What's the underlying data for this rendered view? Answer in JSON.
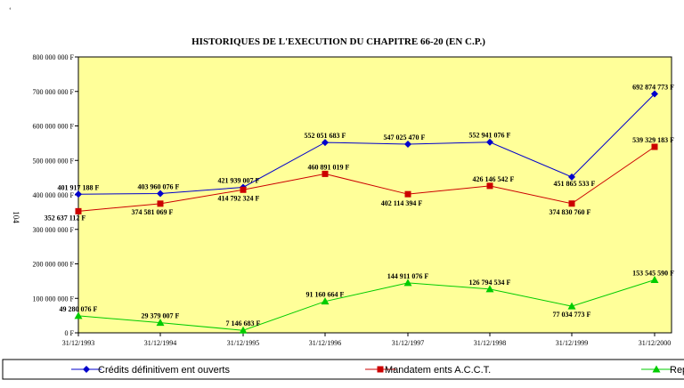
{
  "corner_mark": "ʻ",
  "chart_data": {
    "type": "line",
    "title": "HISTORIQUES DE L'EXECUTION DU CHAPITRE 66-20 (EN C.P.)",
    "side_label": "104",
    "ylim": [
      0,
      800000000
    ],
    "y_ticks": [
      0,
      100000000,
      200000000,
      300000000,
      400000000,
      500000000,
      600000000,
      700000000,
      800000000
    ],
    "y_tick_labels": [
      "0 F",
      "100 000 000 F",
      "200 000 000 F",
      "300 000 000 F",
      "400 000 000 F",
      "500 000 000 F",
      "600 000 000 F",
      "700 000 000 F",
      "800 000 000 F"
    ],
    "categories": [
      "31/12/1993",
      "31/12/1994",
      "31/12/1995",
      "31/12/1996",
      "31/12/1997",
      "31/12/1998",
      "31/12/1999",
      "31/12/2000"
    ],
    "plot_background": "#ffff99",
    "grid": false,
    "legend_position": "bottom",
    "series": [
      {
        "name": "Crédits définitivem ent ouverts",
        "color": "#0000cc",
        "marker": "diamond",
        "values": [
          401917188,
          403960076,
          421939007,
          552051683,
          547025470,
          552941076,
          451865533,
          692874773
        ],
        "labels": [
          "401 917 188 F",
          "403 960 076 F",
          "421 939 007 F",
          "552 051 683 F",
          "547 025 470 F",
          "552 941 076 F",
          "451 865 533 F",
          "692 874 773 F"
        ]
      },
      {
        "name": "Mandatem ents A.C.C.T.",
        "color": "#cc0000",
        "marker": "square",
        "values": [
          352637112,
          374581069,
          414792324,
          460891019,
          402114394,
          426146542,
          374830760,
          539329183
        ],
        "labels": [
          "352 637 112 F",
          "374 581 069 F",
          "414 792 324 F",
          "460 891 019 F",
          "402 114 394 F",
          "426 146 542 F",
          "374 830 760 F",
          "539 329 183 F"
        ]
      },
      {
        "name": "Rep",
        "color": "#00cc00",
        "marker": "triangle",
        "values": [
          49280076,
          29379007,
          7146683,
          91160664,
          144911076,
          126794534,
          77034773,
          153545590
        ],
        "labels": [
          "49 280 076 F",
          "29 379 007 F",
          "7 146 683 F",
          "91 160 664 F",
          "144 911 076 F",
          "126 794 534 F",
          "77 034 773 F",
          "153 545 590 F"
        ]
      }
    ]
  }
}
